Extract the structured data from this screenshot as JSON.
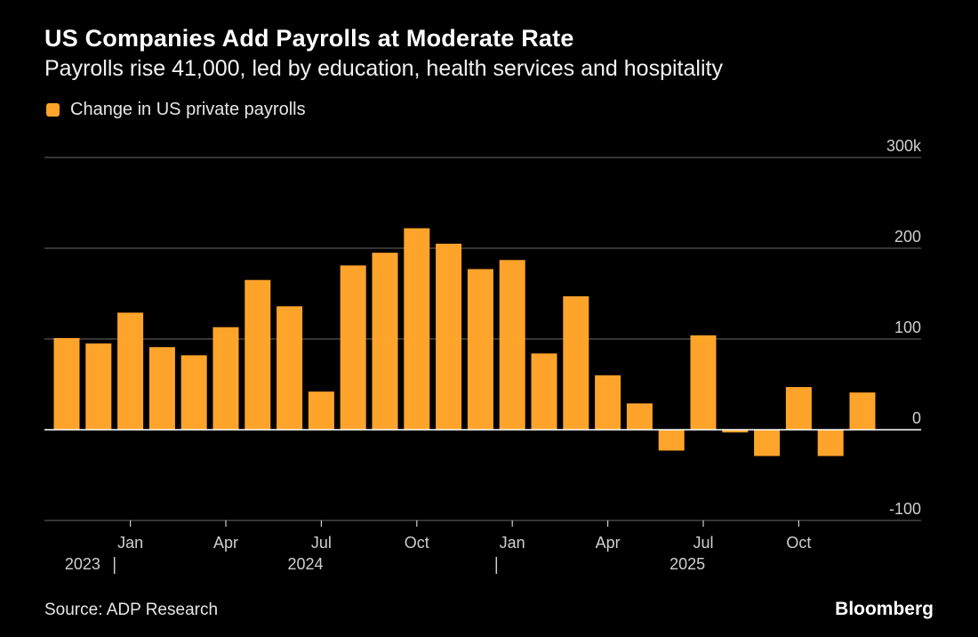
{
  "colors": {
    "background": "#000000",
    "bar": "#ffa42b",
    "grid": "#555555",
    "zero_line": "#ffffff",
    "axis_text": "#cfcfcf"
  },
  "chart_data": {
    "type": "bar",
    "title": "US Companies Add Payrolls at Moderate Rate",
    "subtitle": "Payrolls rise 41,000, led by education, health services and hospitality",
    "legend": [
      "Change in US private payrolls"
    ],
    "legend_position": "top-left",
    "series": [
      {
        "name": "Change in US private payrolls",
        "values": [
          101,
          95,
          129,
          91,
          82,
          113,
          165,
          136,
          42,
          181,
          195,
          222,
          205,
          177,
          187,
          84,
          147,
          60,
          29,
          -23,
          104,
          -3,
          -29,
          47,
          -29,
          41
        ]
      }
    ],
    "categories": [
      "2023-11",
      "2023-12",
      "2024-01",
      "2024-02",
      "2024-03",
      "2024-04",
      "2024-05",
      "2024-06",
      "2024-07",
      "2024-08",
      "2024-09",
      "2024-10",
      "2024-11",
      "2024-12",
      "2025-01",
      "2025-02",
      "2025-03",
      "2025-04",
      "2025-05",
      "2025-06",
      "2025-07",
      "2025-08",
      "2025-09",
      "2025-10",
      "2025-11",
      "2025-12"
    ],
    "ylim": [
      -100,
      300
    ],
    "yticks": [
      {
        "value": 300,
        "label": "300k"
      },
      {
        "value": 200,
        "label": "200"
      },
      {
        "value": 100,
        "label": "100"
      },
      {
        "value": 0,
        "label": "0"
      },
      {
        "value": -100,
        "label": "-100"
      }
    ],
    "xticks": [
      {
        "index": 2,
        "label": "Jan"
      },
      {
        "index": 5,
        "label": "Apr"
      },
      {
        "index": 8,
        "label": "Jul"
      },
      {
        "index": 11,
        "label": "Oct"
      },
      {
        "index": 14,
        "label": "Jan"
      },
      {
        "index": 17,
        "label": "Apr"
      },
      {
        "index": 20,
        "label": "Jul"
      },
      {
        "index": 23,
        "label": "Oct"
      }
    ],
    "year_labels": [
      {
        "index": 0.5,
        "label": "2023"
      },
      {
        "index": 7.5,
        "label": "2024"
      },
      {
        "index": 19.5,
        "label": "2025"
      }
    ],
    "year_separators": [
      1.5,
      13.5
    ],
    "grid": true,
    "xlabel": "",
    "ylabel": ""
  },
  "footer": {
    "source": "Source: ADP Research",
    "brand": "Bloomberg"
  }
}
